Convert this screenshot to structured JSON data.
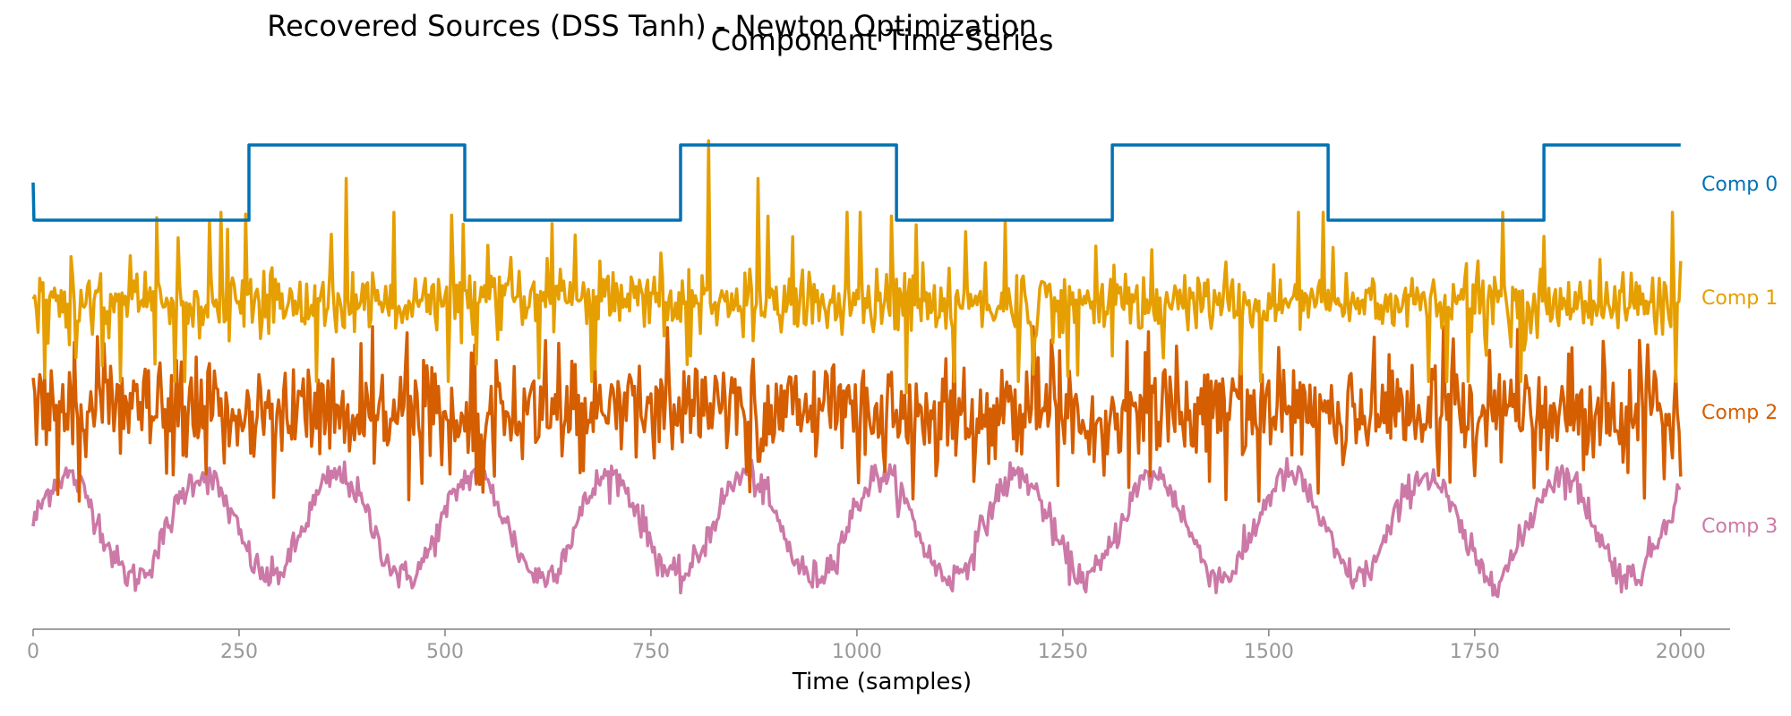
{
  "chart_data": {
    "type": "line",
    "title": "Recovered Sources (DSS Tanh) - Newton Optimization",
    "subtitle": "Component Time Series",
    "xlabel": "Time (samples)",
    "ylabel": "",
    "xlim": [
      0,
      2060
    ],
    "x_ticks": [
      0,
      250,
      500,
      750,
      1000,
      1250,
      1500,
      1750,
      2000
    ],
    "n_samples": 2000,
    "grid": false,
    "legend": "none",
    "series": [
      {
        "name": "Comp 0",
        "color": "#0072B2",
        "kind": "square_wave",
        "levels": [
          0,
          1
        ],
        "x": [
          0,
          1,
          262,
          262,
          524,
          524,
          786,
          786,
          1048,
          1048,
          1310,
          1310,
          1572,
          1572,
          1834,
          1834,
          2000
        ],
        "y": [
          0.5,
          0,
          0,
          1,
          1,
          0,
          0,
          1,
          1,
          0,
          0,
          1,
          1,
          0,
          0,
          1,
          1
        ]
      },
      {
        "name": "Comp 1",
        "color": "#E69F00",
        "kind": "sparse_spiky_noise",
        "baseline": 0,
        "typical_range": [
          -1,
          1
        ],
        "spike_peaks": [
          {
            "x": 380,
            "y": 3.3
          },
          {
            "x": 820,
            "y": 4.3
          },
          {
            "x": 880,
            "y": 3.3
          },
          {
            "x": 1060,
            "y": -2.4
          }
        ]
      },
      {
        "name": "Comp 2",
        "color": "#D55E00",
        "kind": "dense_noise",
        "baseline": 0,
        "typical_range": [
          -1,
          1
        ],
        "extremes": [
          -2.0,
          1.9
        ]
      },
      {
        "name": "Comp 3",
        "color": "#CC79A7",
        "kind": "noisy_sine",
        "period_samples": 165,
        "amplitude": 1,
        "noise": 0.15
      }
    ]
  }
}
